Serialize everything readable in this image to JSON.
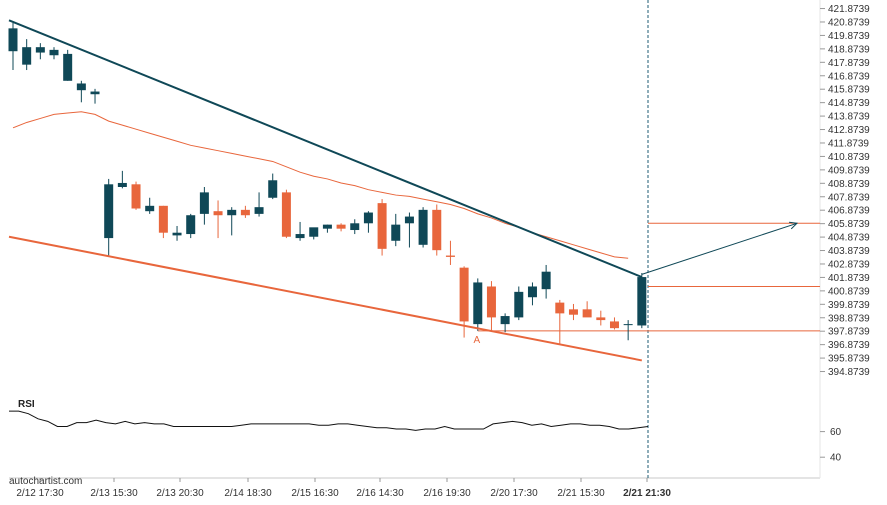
{
  "brand": "autochartist.com",
  "colors": {
    "up": "#0f4857",
    "down": "#e8663c",
    "resistance": "#0f4857",
    "support": "#e8663c",
    "ma": "#e8663c",
    "level": "#e8663c",
    "rsi": "#111111",
    "grid": "#dcdcdc",
    "vline": "#1c5b73"
  },
  "chart_data": {
    "type": "candlestick",
    "y_ticks": [
      "421.8739",
      "420.8739",
      "419.8739",
      "418.8739",
      "417.8739",
      "416.8739",
      "415.8739",
      "414.8739",
      "413.8739",
      "412.8739",
      "411.8739",
      "410.8739",
      "409.8739",
      "408.8739",
      "407.8739",
      "406.8739",
      "405.8739",
      "404.8739",
      "403.8739",
      "402.8739",
      "401.8739",
      "400.8739",
      "399.8739",
      "398.8739",
      "397.8739",
      "396.8739",
      "395.8739",
      "394.8739"
    ],
    "ylim": [
      393.5,
      422.1
    ],
    "x_labels": [
      "2/12 17:30",
      "2/13 15:30",
      "2/13 20:30",
      "2/14 18:30",
      "2/15 16:30",
      "2/16 14:30",
      "2/16 19:30",
      "2/20 17:30",
      "2/21 15:30",
      "2/21 21:30"
    ],
    "x_label_bold_index": 9,
    "candles": [
      {
        "o": 418.7,
        "h": 420.8,
        "l": 417.3,
        "c": 420.4
      },
      {
        "o": 417.7,
        "h": 419.6,
        "l": 417.3,
        "c": 419.0
      },
      {
        "o": 418.6,
        "h": 419.3,
        "l": 418.1,
        "c": 419.0
      },
      {
        "o": 418.4,
        "h": 419.0,
        "l": 418.1,
        "c": 418.8
      },
      {
        "o": 416.5,
        "h": 418.8,
        "l": 416.5,
        "c": 418.5
      },
      {
        "o": 415.8,
        "h": 416.5,
        "l": 414.9,
        "c": 416.3
      },
      {
        "o": 415.5,
        "h": 415.9,
        "l": 414.8,
        "c": 415.7
      },
      {
        "o": 404.8,
        "h": 409.2,
        "l": 403.4,
        "c": 408.8
      },
      {
        "o": 408.6,
        "h": 409.8,
        "l": 408.5,
        "c": 408.9
      },
      {
        "o": 408.8,
        "h": 409.0,
        "l": 406.9,
        "c": 407.0
      },
      {
        "o": 406.8,
        "h": 407.8,
        "l": 406.6,
        "c": 407.2
      },
      {
        "o": 407.2,
        "h": 407.2,
        "l": 404.8,
        "c": 405.2
      },
      {
        "o": 405.0,
        "h": 405.7,
        "l": 404.6,
        "c": 405.2
      },
      {
        "o": 405.1,
        "h": 406.6,
        "l": 404.8,
        "c": 406.5
      },
      {
        "o": 406.6,
        "h": 408.6,
        "l": 405.8,
        "c": 408.2
      },
      {
        "o": 406.8,
        "h": 407.6,
        "l": 404.8,
        "c": 406.5
      },
      {
        "o": 406.5,
        "h": 407.1,
        "l": 405.0,
        "c": 406.9
      },
      {
        "o": 406.9,
        "h": 407.2,
        "l": 406.3,
        "c": 406.5
      },
      {
        "o": 406.6,
        "h": 408.2,
        "l": 406.4,
        "c": 407.1
      },
      {
        "o": 407.8,
        "h": 409.6,
        "l": 407.7,
        "c": 409.1
      },
      {
        "o": 408.2,
        "h": 408.4,
        "l": 404.8,
        "c": 404.9
      },
      {
        "o": 404.8,
        "h": 406.0,
        "l": 404.6,
        "c": 405.1
      },
      {
        "o": 404.9,
        "h": 405.5,
        "l": 404.7,
        "c": 405.6
      },
      {
        "o": 405.5,
        "h": 405.8,
        "l": 405.2,
        "c": 405.8
      },
      {
        "o": 405.8,
        "h": 405.9,
        "l": 405.3,
        "c": 405.5
      },
      {
        "o": 405.4,
        "h": 406.2,
        "l": 405.1,
        "c": 405.9
      },
      {
        "o": 405.9,
        "h": 406.8,
        "l": 405.2,
        "c": 406.7
      },
      {
        "o": 407.4,
        "h": 407.7,
        "l": 403.5,
        "c": 404.0
      },
      {
        "o": 404.6,
        "h": 406.6,
        "l": 404.2,
        "c": 405.8
      },
      {
        "o": 405.9,
        "h": 406.7,
        "l": 404.1,
        "c": 406.4
      },
      {
        "o": 404.3,
        "h": 407.1,
        "l": 404.1,
        "c": 406.9
      },
      {
        "o": 406.9,
        "h": 407.3,
        "l": 403.5,
        "c": 403.9
      },
      {
        "o": 403.5,
        "h": 404.6,
        "l": 402.8,
        "c": 403.4
      },
      {
        "o": 402.6,
        "h": 402.7,
        "l": 397.4,
        "c": 398.6
      },
      {
        "o": 398.4,
        "h": 401.8,
        "l": 397.9,
        "c": 401.5
      },
      {
        "o": 401.2,
        "h": 401.6,
        "l": 397.9,
        "c": 398.9
      },
      {
        "o": 398.4,
        "h": 399.2,
        "l": 397.8,
        "c": 399.0
      },
      {
        "o": 398.9,
        "h": 401.2,
        "l": 398.7,
        "c": 400.8
      },
      {
        "o": 400.4,
        "h": 401.5,
        "l": 399.8,
        "c": 401.2
      },
      {
        "o": 401.0,
        "h": 402.8,
        "l": 400.3,
        "c": 402.3
      },
      {
        "o": 400.0,
        "h": 400.2,
        "l": 396.9,
        "c": 399.2
      },
      {
        "o": 399.5,
        "h": 399.9,
        "l": 398.7,
        "c": 399.1
      },
      {
        "o": 399.5,
        "h": 400.1,
        "l": 399.0,
        "c": 398.9
      },
      {
        "o": 398.9,
        "h": 399.4,
        "l": 398.3,
        "c": 398.7
      },
      {
        "o": 398.6,
        "h": 398.9,
        "l": 398.0,
        "c": 398.1
      },
      {
        "o": 398.4,
        "h": 398.7,
        "l": 397.2,
        "c": 398.4
      },
      {
        "o": 398.3,
        "h": 402.2,
        "l": 398.1,
        "c": 401.9
      }
    ],
    "moving_average": [
      413.0,
      413.4,
      413.7,
      414.0,
      414.1,
      414.2,
      414.0,
      413.5,
      413.2,
      412.9,
      412.6,
      412.3,
      412.0,
      411.7,
      411.5,
      411.3,
      411.1,
      410.9,
      410.7,
      410.5,
      410.1,
      409.7,
      409.4,
      409.2,
      408.9,
      408.7,
      408.4,
      408.2,
      408.0,
      407.9,
      407.7,
      407.5,
      407.3,
      407.0,
      406.6,
      406.3,
      405.9,
      405.6,
      405.2,
      404.9,
      404.6,
      404.3,
      404.0,
      403.7,
      403.4,
      403.3
    ],
    "resistance_line": {
      "start_index": 0,
      "start": 421.0,
      "end_index": 46,
      "end": 401.9
    },
    "support_line": {
      "start_index": 0,
      "start": 404.9,
      "end_index": 46,
      "end": 395.7
    },
    "breakout_level": 401.2,
    "target_level": 405.9,
    "support_level": 397.9,
    "projection": {
      "from_index": 46,
      "from": 402.1,
      "to": 405.9
    },
    "point_label": "A",
    "point_label_index": 34,
    "rsi": {
      "title": "RSI",
      "ticks": [
        "60",
        "40"
      ],
      "ylim": [
        30,
        80
      ],
      "values": [
        76,
        76,
        74,
        70,
        68,
        64,
        64,
        67,
        67,
        69,
        67,
        66,
        68,
        66,
        67,
        66,
        66,
        64,
        64,
        64,
        64,
        64,
        64,
        64,
        65,
        66,
        66,
        66,
        66,
        66,
        66,
        66,
        65,
        65,
        66,
        66,
        65,
        64,
        63,
        63,
        62,
        62,
        61,
        62,
        62,
        64,
        62,
        62,
        62,
        62,
        66,
        67,
        68,
        67,
        65,
        66,
        64,
        65,
        66,
        66,
        65,
        65,
        64,
        62,
        62,
        63,
        64
      ]
    }
  }
}
